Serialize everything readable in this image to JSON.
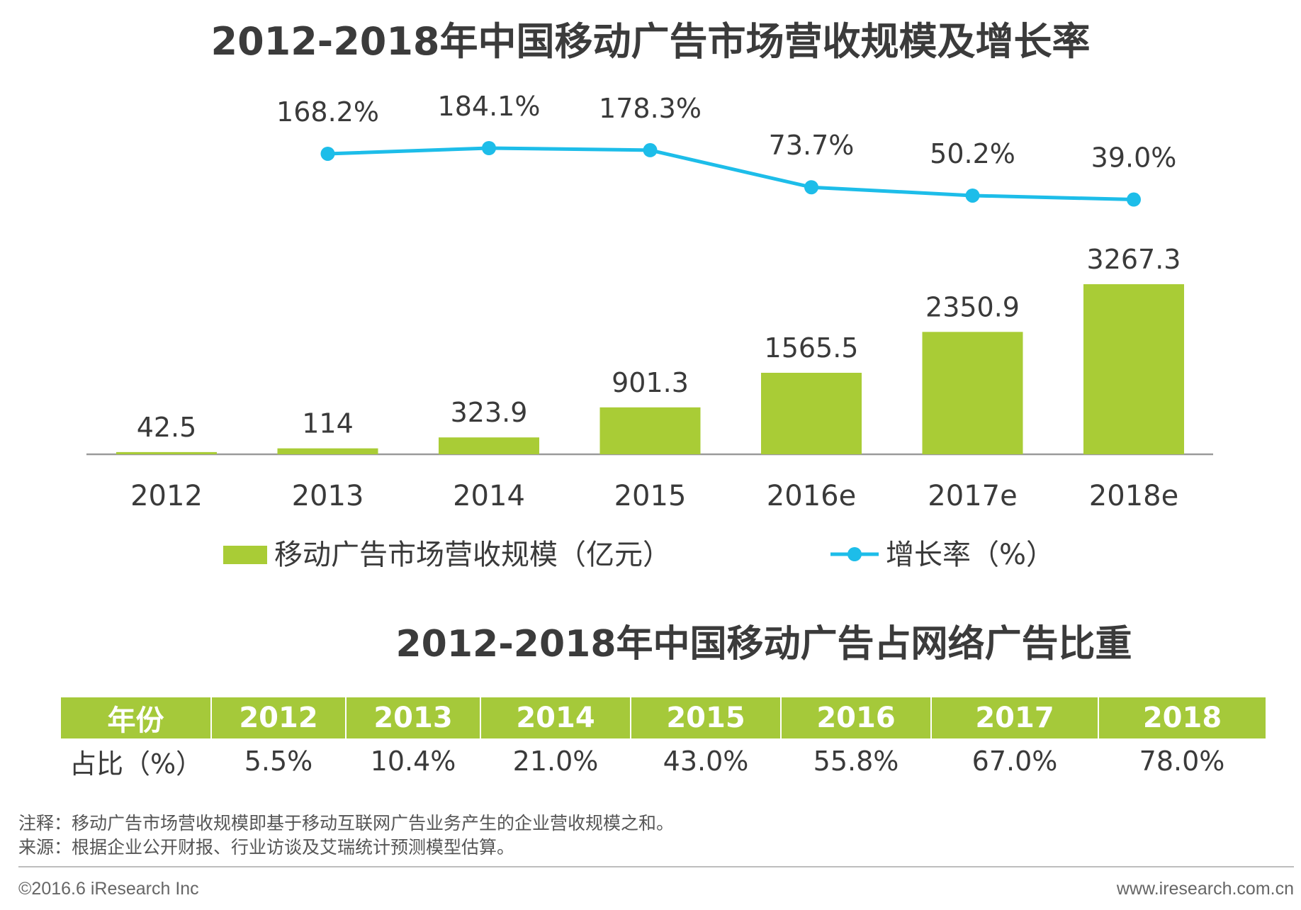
{
  "chart_data": {
    "type": "bar",
    "title": "2012-2018年中国移动广告市场营收规模及增长率",
    "categories": [
      "2012",
      "2013",
      "2014",
      "2015",
      "2016e",
      "2017e",
      "2018e"
    ],
    "series": [
      {
        "name": "移动广告市场营收规模（亿元）",
        "type": "bar",
        "color": "#a9cc36",
        "values": [
          42.5,
          114,
          323.9,
          901.3,
          1565.5,
          2350.9,
          3267.3
        ],
        "labels": [
          "42.5",
          "114",
          "323.9",
          "901.3",
          "1565.5",
          "2350.9",
          "3267.3"
        ]
      },
      {
        "name": "增长率（%）",
        "type": "line",
        "color": "#1dbde9",
        "values": [
          null,
          168.2,
          184.1,
          178.3,
          73.7,
          50.2,
          39.0
        ],
        "labels": [
          null,
          "168.2%",
          "184.1%",
          "178.3%",
          "73.7%",
          "50.2%",
          "39.0%"
        ]
      }
    ],
    "legend_position": "bottom",
    "xlabel": "",
    "ylabel": ""
  },
  "table": {
    "title": "2012-2018年中国移动广告占网络广告比重",
    "header_label": "年份",
    "row_label": "占比（%）",
    "years": [
      "2012",
      "2013",
      "2014",
      "2015",
      "2016",
      "2017",
      "2018"
    ],
    "shares": [
      "5.5%",
      "10.4%",
      "21.0%",
      "43.0%",
      "55.8%",
      "67.0%",
      "78.0%"
    ]
  },
  "notes": {
    "note": "注释：移动广告市场营收规模即基于移动互联网广告业务产生的企业营收规模之和。",
    "source": "来源：根据企业公开财报、行业访谈及艾瑞统计预测模型估算。"
  },
  "footer": {
    "copyright": "©2016.6 iResearch Inc",
    "website": "www.iresearch.com.cn"
  }
}
